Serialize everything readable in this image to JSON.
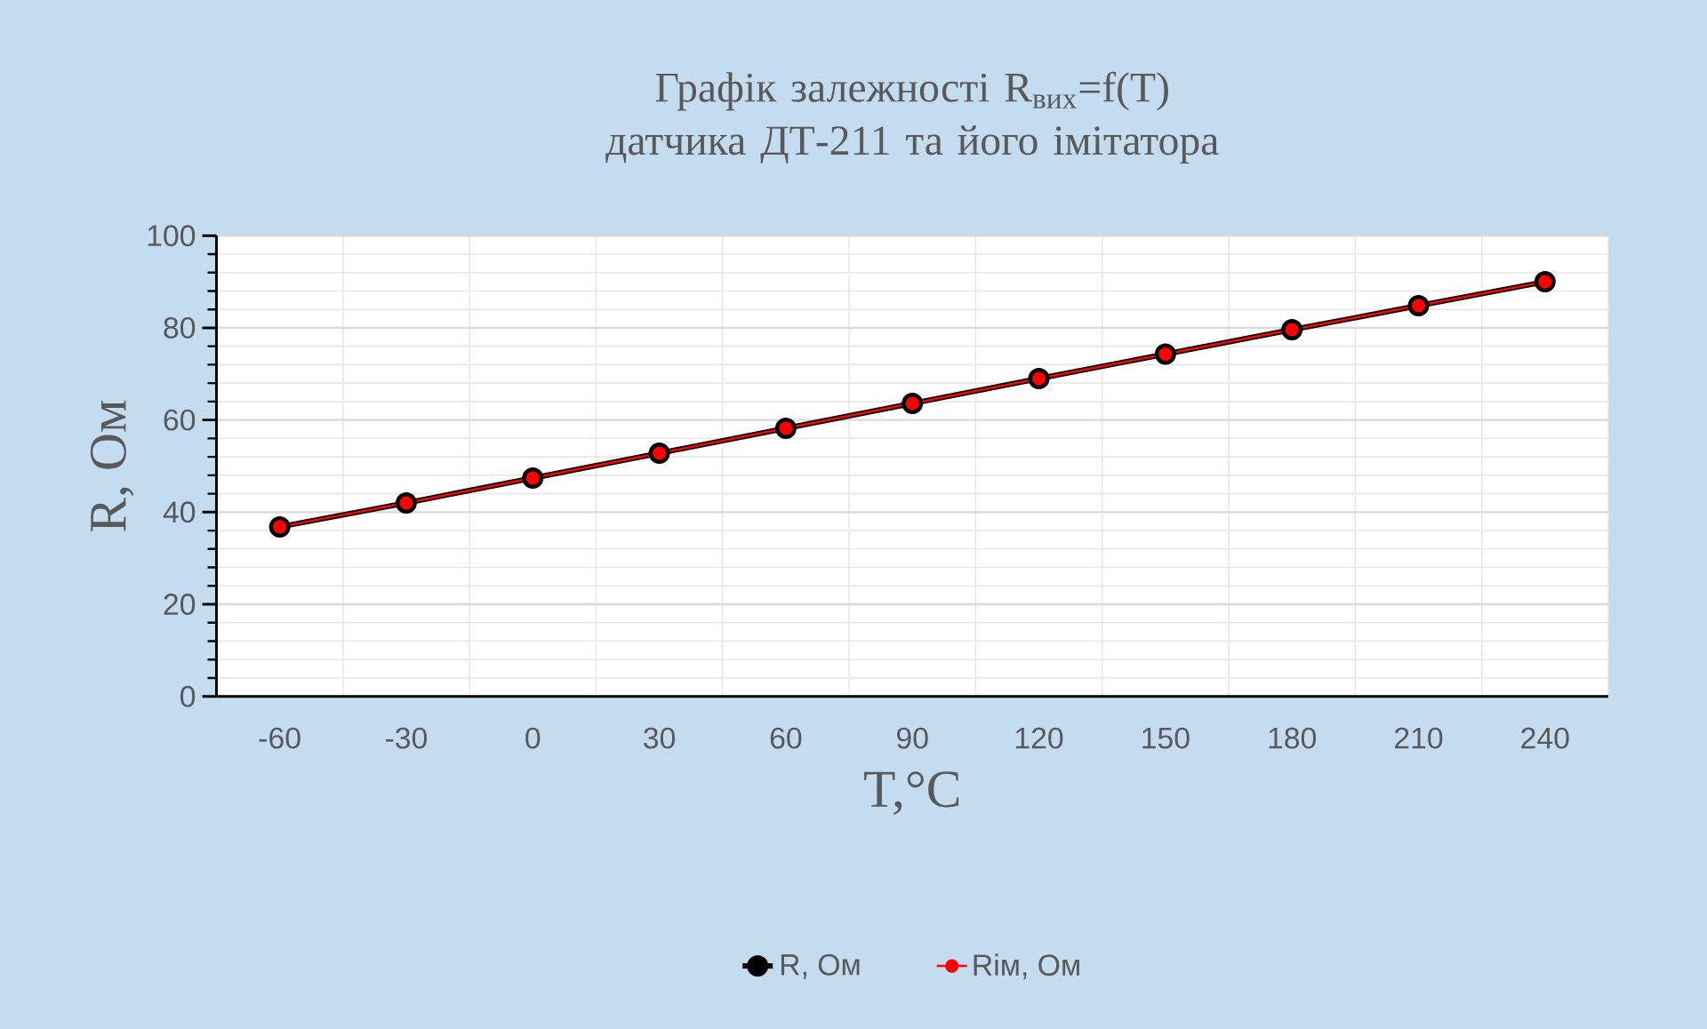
{
  "chart_data": {
    "type": "line",
    "title": "Графік залежності R$_{вих}$=f(T) датчика ДТ-211 та його імітатора",
    "xlabel": "T,°C",
    "ylabel": "R, Ом",
    "categories": [
      "-60",
      "-30",
      "0",
      "30",
      "60",
      "90",
      "120",
      "150",
      "180",
      "210",
      "240"
    ],
    "series": [
      {
        "name": "R, Ом",
        "color": "#000000",
        "values": [
          36.8,
          42.0,
          47.4,
          52.8,
          58.2,
          63.6,
          69.0,
          74.3,
          79.6,
          84.8,
          90.0
        ]
      },
      {
        "name": "Rім, Ом",
        "color": "#ff0000",
        "values": [
          36.8,
          42.0,
          47.4,
          52.8,
          58.2,
          63.6,
          69.0,
          74.3,
          79.6,
          84.8,
          90.0
        ]
      }
    ],
    "ylim": [
      0,
      100
    ],
    "yticks": [
      0,
      20,
      40,
      60,
      80,
      100
    ],
    "grid": true,
    "legend": "bottom",
    "marker": "circle"
  }
}
